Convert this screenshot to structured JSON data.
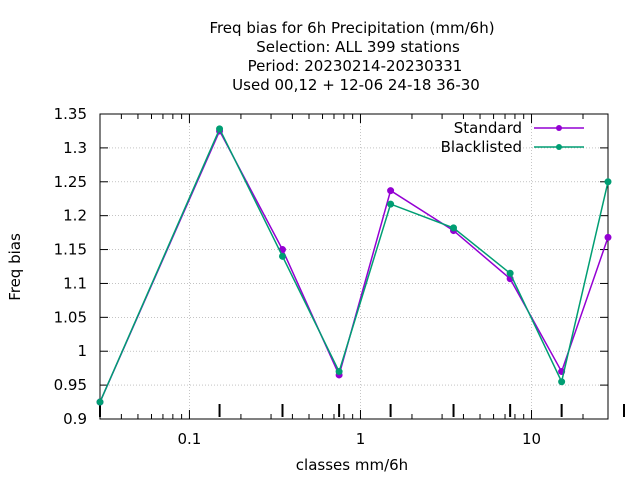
{
  "chart_data": {
    "type": "line",
    "title_lines": [
      "Freq bias  for 6h Precipitation (mm/6h)",
      "Selection: ALL    399 stations",
      "Period: 20230214-20230331",
      "Used  00,12  + 12-06 24-18 36-30"
    ],
    "xlabel": "classes mm/6h",
    "ylabel": "Freq bias",
    "x_scale": "log",
    "xlim": [
      0.03,
      28
    ],
    "ylim": [
      0.9,
      1.35
    ],
    "grid": true,
    "legend_position": "top-right",
    "x_tick_labels": [
      {
        "value": 0.1,
        "label": "0.1"
      },
      {
        "value": 1,
        "label": "1"
      },
      {
        "value": 10,
        "label": "10"
      }
    ],
    "y_tick_labels": [
      "0.9",
      "0.95",
      "1",
      "1.05",
      "1.1",
      "1.15",
      "1.2",
      "1.25",
      "1.3",
      "1.35"
    ],
    "y_ticks": [
      0.9,
      0.95,
      1.0,
      1.05,
      1.1,
      1.15,
      1.2,
      1.25,
      1.3,
      1.35
    ],
    "x": [
      0.03,
      0.15,
      0.35,
      0.75,
      1.5,
      3.5,
      7.5,
      15,
      28
    ],
    "series": [
      {
        "name": "Standard",
        "color": "#9400d3",
        "values": [
          0.925,
          1.325,
          1.15,
          0.965,
          1.237,
          1.178,
          1.107,
          0.97,
          1.168
        ]
      },
      {
        "name": "Blacklisted",
        "color": "#009e73",
        "values": [
          0.925,
          1.328,
          1.14,
          0.97,
          1.217,
          1.182,
          1.115,
          0.955,
          1.25
        ]
      }
    ]
  }
}
